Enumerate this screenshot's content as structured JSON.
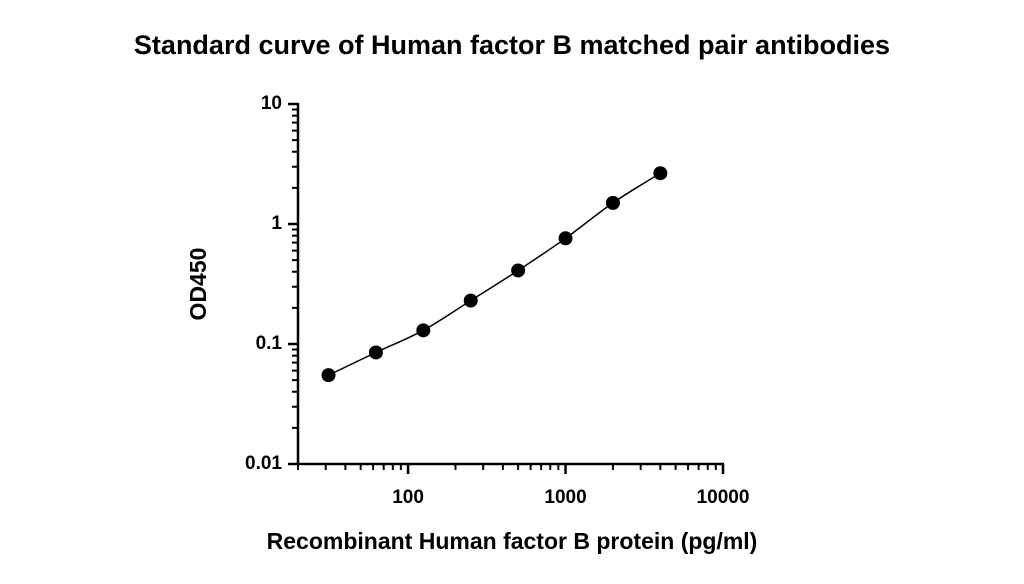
{
  "chart_data": {
    "type": "scatter",
    "title": "Standard curve of Human factor B matched pair antibodies",
    "x_label": "Recombinant Human factor B protein (pg/ml)",
    "y_label": "OD450",
    "x": [
      31.25,
      62.5,
      125,
      250,
      500,
      1000,
      2000,
      4000
    ],
    "series": [
      {
        "color": "#000000",
        "values": [
          0.055,
          0.085,
          0.13,
          0.23,
          0.41,
          0.76,
          1.5,
          2.65
        ]
      }
    ],
    "xlim": [
      20,
      10000
    ],
    "ylim": [
      0.01,
      10
    ],
    "xticks": [
      100,
      1000,
      10000
    ],
    "yticks": [
      0.01,
      0.1,
      1,
      10
    ],
    "x_minor_ticks": [
      20,
      30,
      40,
      50,
      60,
      70,
      80,
      90,
      200,
      300,
      400,
      500,
      600,
      700,
      800,
      900,
      2000,
      3000,
      4000,
      5000,
      6000,
      7000,
      8000,
      9000
    ],
    "y_minor_ticks": [
      0.02,
      0.03,
      0.04,
      0.05,
      0.06,
      0.07,
      0.08,
      0.09,
      0.2,
      0.3,
      0.4,
      0.5,
      0.6,
      0.7,
      0.8,
      0.9,
      2,
      3,
      4,
      5,
      6,
      7,
      8,
      9
    ],
    "x_log": true,
    "y_log": true,
    "grid": false,
    "fit_line": true
  }
}
